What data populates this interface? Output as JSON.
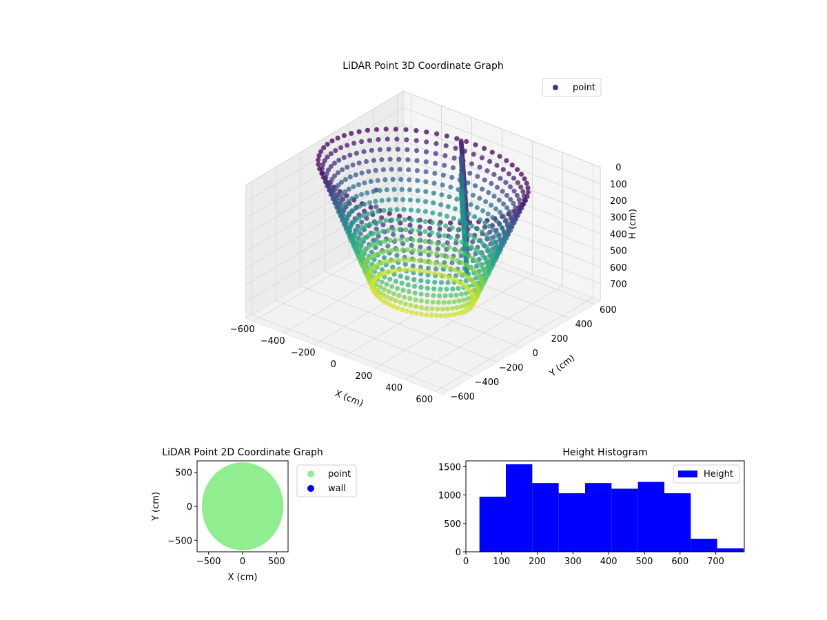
{
  "chart_data": [
    {
      "type": "scatter3d",
      "title": "LiDAR Point 3D Coordinate Graph",
      "xlabel": "X (cm)",
      "ylabel": "Y (cm)",
      "zlabel": "H (cm)",
      "xticks": [
        -600,
        -400,
        -200,
        0,
        200,
        400,
        600
      ],
      "yticks": [
        -600,
        -400,
        -200,
        0,
        200,
        400,
        600
      ],
      "zticks": [
        0,
        100,
        200,
        300,
        400,
        500,
        600,
        700
      ],
      "xlim": [
        -650,
        650
      ],
      "ylim": [
        -650,
        650
      ],
      "zlim": [
        0,
        770
      ],
      "z_inverted": true,
      "colormap": "viridis",
      "legend": {
        "position": "top-right",
        "entries": [
          {
            "label": "point",
            "color": "#46327e"
          }
        ]
      },
      "description_of_data": {
        "ring_radius_approx": 600,
        "azimuth_steps": 64,
        "height_samples_per_column": [
          0,
          50,
          100,
          150,
          200,
          250,
          300,
          350,
          400,
          450,
          500,
          550,
          600,
          650,
          700
        ],
        "interior_structure_x_range": [
          -150,
          450
        ],
        "interior_structure_y_range": [
          -200,
          500
        ]
      },
      "grid": true
    },
    {
      "type": "scatter",
      "title": "LiDAR Point 2D Coordinate Graph",
      "xlabel": "X (cm)",
      "ylabel": "Y (cm)",
      "xticks": [
        -500,
        0,
        500
      ],
      "yticks": [
        -500,
        0,
        500
      ],
      "xlim": [
        -670,
        670
      ],
      "ylim": [
        -670,
        670
      ],
      "series": [
        {
          "name": "point",
          "color": "#90ee90",
          "shape": "filled disc",
          "radius": 600
        },
        {
          "name": "wall",
          "color": "#0000ff",
          "points": []
        }
      ],
      "legend": {
        "position": "outside-right"
      }
    },
    {
      "type": "histogram",
      "title": "Height Histogram",
      "xticks": [
        0,
        100,
        200,
        300,
        400,
        500,
        600,
        700
      ],
      "yticks": [
        0,
        500,
        1000,
        1500
      ],
      "xlim": [
        0,
        780
      ],
      "ylim": [
        0,
        1600
      ],
      "bins": [
        {
          "start": 38,
          "end": 112,
          "count": 970
        },
        {
          "start": 112,
          "end": 186,
          "count": 1540
        },
        {
          "start": 186,
          "end": 260,
          "count": 1210
        },
        {
          "start": 260,
          "end": 334,
          "count": 1030
        },
        {
          "start": 334,
          "end": 408,
          "count": 1210
        },
        {
          "start": 408,
          "end": 482,
          "count": 1110
        },
        {
          "start": 482,
          "end": 556,
          "count": 1230
        },
        {
          "start": 556,
          "end": 630,
          "count": 1030
        },
        {
          "start": 630,
          "end": 704,
          "count": 230
        },
        {
          "start": 704,
          "end": 778,
          "count": 60
        }
      ],
      "color": "#0000ff",
      "legend": {
        "position": "top-right",
        "entries": [
          {
            "label": "Height",
            "color": "#0000ff"
          }
        ]
      }
    }
  ]
}
